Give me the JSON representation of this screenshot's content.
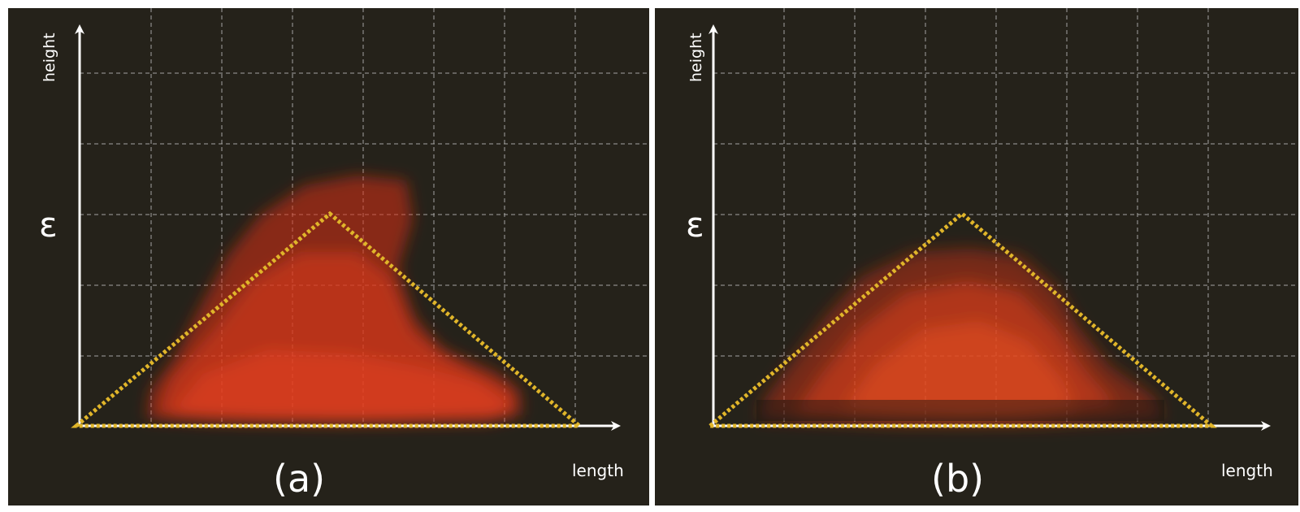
{
  "panels": [
    {
      "id": "a",
      "caption": "(a)",
      "x_axis_label": "length",
      "y_axis_label": "height",
      "marker_label": "ε"
    },
    {
      "id": "b",
      "caption": "(b)",
      "x_axis_label": "length",
      "y_axis_label": "height",
      "marker_label": "ε"
    }
  ],
  "colors": {
    "background": "#25221a",
    "grid": "#cfcfcf",
    "axes": "#ffffff",
    "triangle_outline": "#e0b52a",
    "shape_fill": "#d8321a"
  }
}
